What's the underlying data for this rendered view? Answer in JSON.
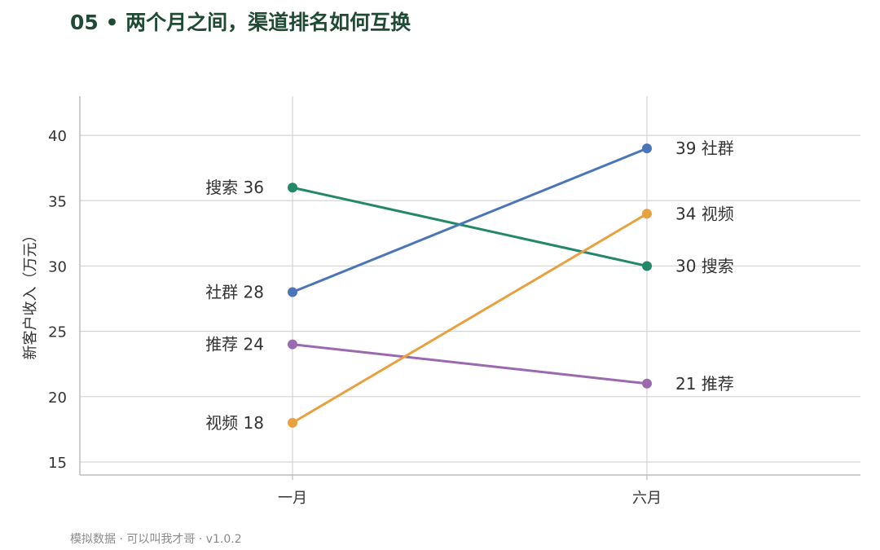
{
  "title": "05 • 两个月之间，渠道排名如何互换",
  "footer": "模拟数据 · 可以叫我才哥 · v1.0.2",
  "chart_data": {
    "type": "line",
    "ylabel": "新客户收入（万元）",
    "categories": [
      "一月",
      "六月"
    ],
    "ylim": [
      14,
      43
    ],
    "yticks": [
      15,
      20,
      25,
      30,
      35,
      40
    ],
    "grid": true,
    "series": [
      {
        "name": "搜索",
        "values": [
          36,
          30
        ],
        "color": "#23876a"
      },
      {
        "name": "社群",
        "values": [
          28,
          39
        ],
        "color": "#4a76b8"
      },
      {
        "name": "推荐",
        "values": [
          24,
          21
        ],
        "color": "#9b69b0"
      },
      {
        "name": "视频",
        "values": [
          18,
          34
        ],
        "color": "#e8a13f"
      }
    ]
  }
}
